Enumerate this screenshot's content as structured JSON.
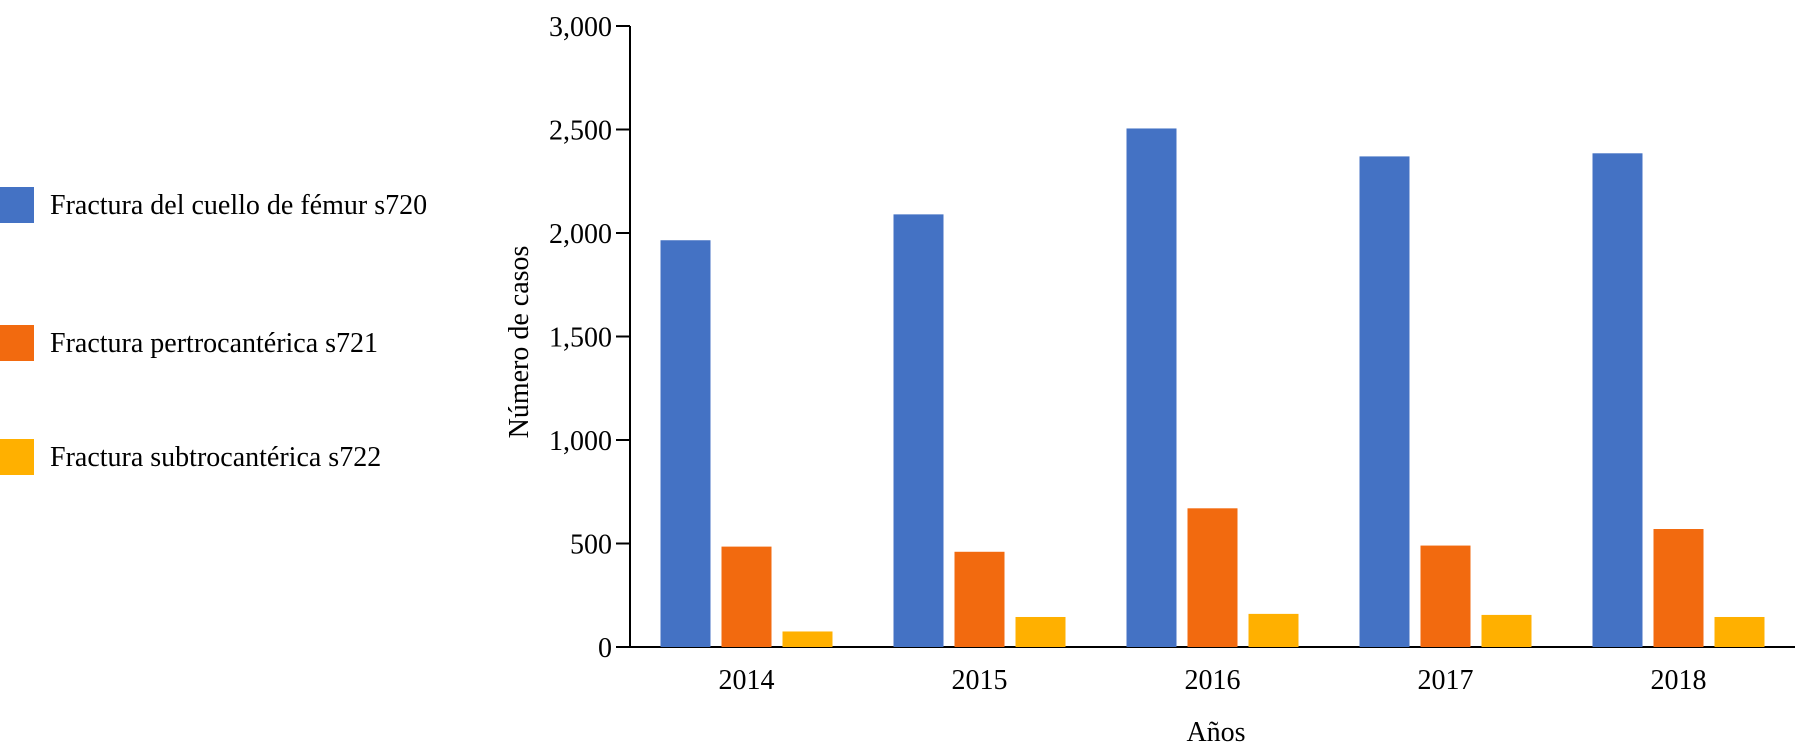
{
  "chart_data": {
    "type": "bar",
    "title": "",
    "xlabel": "Años",
    "ylabel": "Número de casos",
    "ylim": [
      0,
      3000
    ],
    "yticks": [
      0,
      500,
      1000,
      1500,
      2000,
      2500,
      3000
    ],
    "ytick_labels": [
      "0",
      "500",
      "1,000",
      "1,500",
      "2,000",
      "2,500",
      "3,000"
    ],
    "grid": false,
    "legend_position": "left",
    "categories": [
      "2014",
      "2015",
      "2016",
      "2017",
      "2018"
    ],
    "series": [
      {
        "name": "Fractura del cuello de fémur s720",
        "color": "#4472C4",
        "values": [
          1965,
          2090,
          2505,
          2370,
          2385
        ]
      },
      {
        "name": "Fractura pertrocantérica s721",
        "color": "#F26A0F",
        "values": [
          485,
          460,
          670,
          490,
          570
        ]
      },
      {
        "name": "Fractura subtrocantérica s722",
        "color": "#FFB000",
        "values": [
          75,
          145,
          160,
          155,
          145
        ]
      }
    ]
  }
}
